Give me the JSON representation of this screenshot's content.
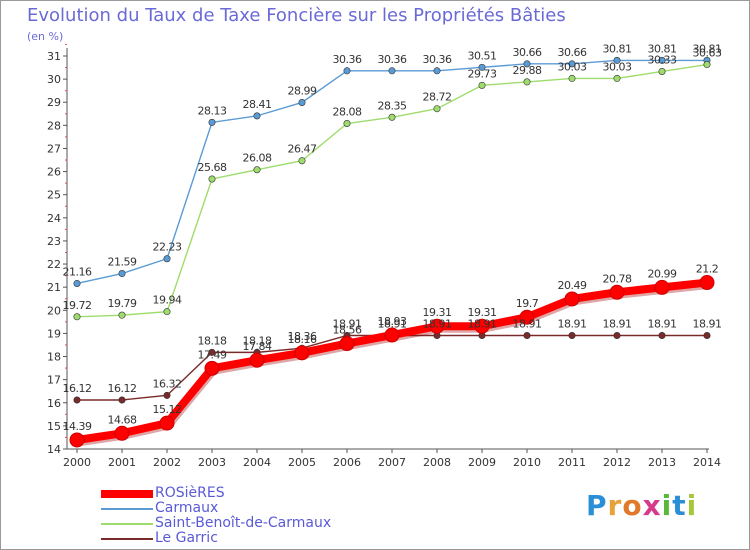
{
  "header": {
    "title": "Evolution du Taux de Taxe Foncière sur les Propriétés Bâties",
    "subtitle": "(en %)"
  },
  "logo": {
    "text": "Proxiti",
    "letters": [
      "P",
      "r",
      "o",
      "x",
      "i",
      "t",
      "i"
    ],
    "colors": [
      "#2a8fd6",
      "#e8a23a",
      "#e07a2a",
      "#d63a8a",
      "#58b83a",
      "#2a8fd6",
      "#a8c83a"
    ]
  },
  "chart_data": {
    "type": "line",
    "x": [
      "2000",
      "2001",
      "2002",
      "2003",
      "2004",
      "2005",
      "2006",
      "2007",
      "2008",
      "2009",
      "2010",
      "2011",
      "2012",
      "2013",
      "2014"
    ],
    "ylim": [
      14,
      31
    ],
    "yticks": [
      14,
      15,
      16,
      17,
      18,
      19,
      20,
      21,
      22,
      23,
      24,
      25,
      26,
      27,
      28,
      29,
      30,
      31
    ],
    "grid": false,
    "legend_position": "bottom-left",
    "series": [
      {
        "name": "ROSièRES",
        "color": "#ff0000",
        "highlight": true,
        "values": [
          14.39,
          14.68,
          15.12,
          17.49,
          17.84,
          18.16,
          18.56,
          18.93,
          19.31,
          19.31,
          19.7,
          20.49,
          20.78,
          20.99,
          21.2
        ],
        "labels": [
          "14.39",
          "14.68",
          "15.12",
          "17.49",
          "17.84",
          "18.16",
          "18.56",
          "18.93",
          "19.31",
          "19.31",
          "19.7",
          "20.49",
          "20.78",
          "20.99",
          "21.2"
        ]
      },
      {
        "name": "Carmaux",
        "color": "#5b9bd5",
        "highlight": false,
        "values": [
          21.16,
          21.59,
          22.23,
          28.13,
          28.41,
          28.99,
          30.36,
          30.36,
          30.36,
          30.51,
          30.66,
          30.66,
          30.81,
          30.81,
          30.81
        ],
        "labels": [
          "21.16",
          "21.59",
          "22.23",
          "28.13",
          "28.41",
          "28.99",
          "30.36",
          "30.36",
          "30.36",
          "30.51",
          "30.66",
          "30.66",
          "30.81",
          "30.81",
          "30.81"
        ]
      },
      {
        "name": "Saint-Benoît-de-Carmaux",
        "color": "#9fdc6e",
        "highlight": false,
        "values": [
          19.72,
          19.79,
          19.94,
          25.68,
          26.08,
          26.47,
          28.08,
          28.35,
          28.72,
          29.73,
          29.88,
          30.03,
          30.03,
          30.33,
          30.63
        ],
        "labels": [
          "19.72",
          "19.79",
          "19.94",
          "25.68",
          "26.08",
          "26.47",
          "28.08",
          "28.35",
          "28.72",
          "29.73",
          "29.88",
          "30.03",
          "30.03",
          "30.33",
          "30.63"
        ]
      },
      {
        "name": "Le Garric",
        "color": "#7a2a2a",
        "highlight": false,
        "values": [
          16.12,
          16.12,
          16.32,
          18.18,
          18.18,
          18.36,
          18.91,
          18.91,
          18.91,
          18.91,
          18.91,
          18.91,
          18.91,
          18.91,
          18.91
        ],
        "labels": [
          "16.12",
          "16.12",
          "16.32",
          "18.18",
          "18.18",
          "18.36",
          "18.91",
          "18.91",
          "18.91",
          "18.91",
          "18.91",
          "18.91",
          "18.91",
          "18.91",
          "18.91"
        ]
      }
    ]
  }
}
